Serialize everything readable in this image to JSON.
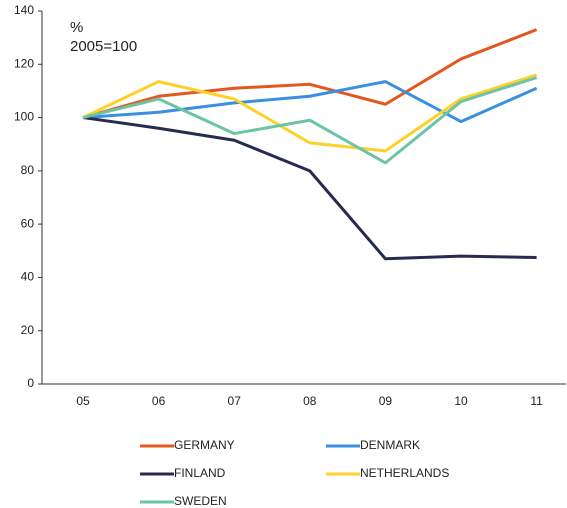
{
  "chart_data": {
    "type": "line",
    "annotations": [
      "%",
      "2005=100"
    ],
    "categories": [
      "05",
      "06",
      "07",
      "08",
      "09",
      "10",
      "11"
    ],
    "series": [
      {
        "name": "GERMANY",
        "color": "#e4581f",
        "values": [
          100,
          108,
          111,
          112.5,
          105,
          122,
          133
        ]
      },
      {
        "name": "DENMARK",
        "color": "#3b8fe0",
        "values": [
          100,
          102,
          105.5,
          108,
          113.5,
          98.5,
          111
        ]
      },
      {
        "name": "FINLAND",
        "color": "#272b4f",
        "values": [
          100,
          96,
          91.5,
          80,
          47,
          48,
          47.5
        ]
      },
      {
        "name": "NETHERLANDS",
        "color": "#fdd02a",
        "values": [
          100,
          113.5,
          107,
          90.5,
          87.5,
          107,
          116
        ]
      },
      {
        "name": "SWEDEN",
        "color": "#6cc4a5",
        "values": [
          100,
          107,
          94,
          99,
          83,
          106,
          115
        ]
      }
    ],
    "ylim": [
      0,
      140
    ],
    "yticks": [
      0,
      20,
      40,
      60,
      80,
      100,
      120,
      140
    ],
    "grid": false,
    "legend": "bottom"
  }
}
